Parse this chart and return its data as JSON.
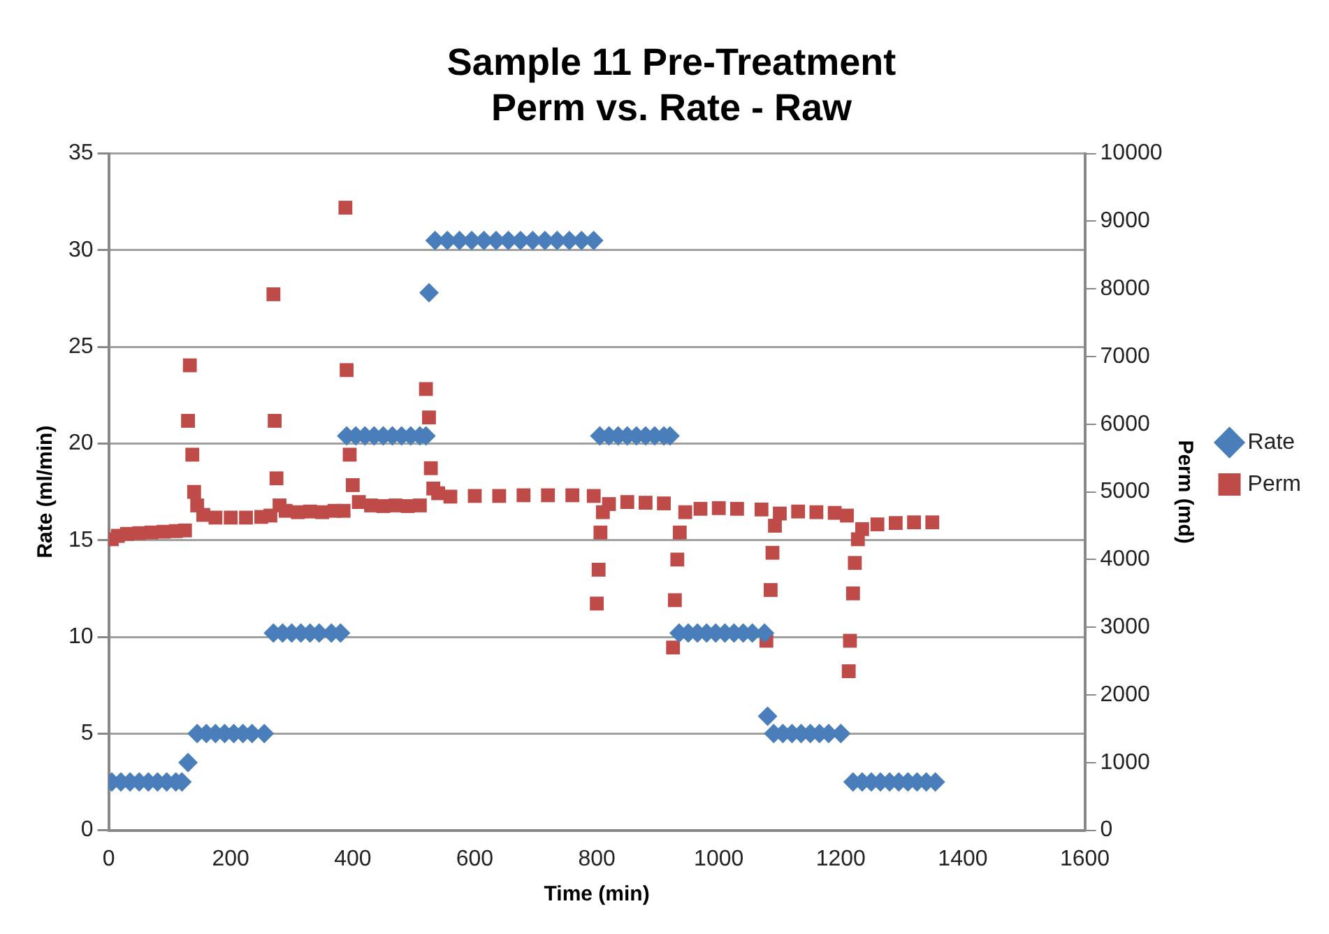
{
  "chart_data": {
    "type": "scatter",
    "title": "Sample 11 Pre-Treatment\nPerm vs. Rate - Raw",
    "xlabel": "Time (min)",
    "ylabel": "Rate (ml/min)",
    "y2label": "Perm (md)",
    "xlim": [
      0,
      1600
    ],
    "xticks": [
      0,
      200,
      400,
      600,
      800,
      1000,
      1200,
      1400,
      1600
    ],
    "ylim": [
      0,
      35
    ],
    "yticks": [
      0,
      5,
      10,
      15,
      20,
      25,
      30,
      35
    ],
    "y2lim": [
      0,
      10000
    ],
    "y2ticks": [
      0,
      1000,
      2000,
      3000,
      4000,
      5000,
      6000,
      7000,
      8000,
      9000,
      10000
    ],
    "grid": "y",
    "legend": "right",
    "series": [
      {
        "name": "Rate",
        "color": "#4a7ebb",
        "marker": "diamond",
        "x": [
          5,
          20,
          35,
          50,
          65,
          80,
          95,
          110,
          120,
          130,
          145,
          160,
          175,
          190,
          205,
          220,
          235,
          255,
          270,
          285,
          300,
          315,
          330,
          345,
          365,
          380,
          390,
          405,
          420,
          435,
          450,
          465,
          480,
          495,
          510,
          520,
          525,
          535,
          555,
          575,
          595,
          615,
          635,
          655,
          675,
          695,
          715,
          735,
          755,
          775,
          795,
          805,
          820,
          835,
          850,
          865,
          880,
          895,
          910,
          920,
          935,
          950,
          965,
          980,
          995,
          1010,
          1025,
          1040,
          1055,
          1075,
          1080,
          1090,
          1105,
          1120,
          1135,
          1150,
          1165,
          1180,
          1200,
          1220,
          1235,
          1250,
          1265,
          1280,
          1295,
          1310,
          1325,
          1340,
          1355
        ],
        "values": [
          2.5,
          2.5,
          2.5,
          2.5,
          2.5,
          2.5,
          2.5,
          2.5,
          2.5,
          3.5,
          5,
          5,
          5,
          5,
          5,
          5,
          5,
          5,
          10.2,
          10.2,
          10.2,
          10.2,
          10.2,
          10.2,
          10.2,
          10.2,
          20.4,
          20.4,
          20.4,
          20.4,
          20.4,
          20.4,
          20.4,
          20.4,
          20.4,
          20.4,
          27.8,
          30.5,
          30.5,
          30.5,
          30.5,
          30.5,
          30.5,
          30.5,
          30.5,
          30.5,
          30.5,
          30.5,
          30.5,
          30.5,
          30.5,
          20.4,
          20.4,
          20.4,
          20.4,
          20.4,
          20.4,
          20.4,
          20.4,
          20.4,
          10.2,
          10.2,
          10.2,
          10.2,
          10.2,
          10.2,
          10.2,
          10.2,
          10.2,
          10.2,
          5.9,
          5,
          5,
          5,
          5,
          5,
          5,
          5,
          5,
          2.5,
          2.5,
          2.5,
          2.5,
          2.5,
          2.5,
          2.5,
          2.5,
          2.5,
          2.5
        ]
      },
      {
        "name": "Perm",
        "color": "#be4b48",
        "marker": "square",
        "axis": "y2",
        "x": [
          5,
          15,
          30,
          50,
          70,
          90,
          110,
          125,
          130,
          133,
          137,
          140,
          145,
          155,
          175,
          200,
          225,
          250,
          265,
          270,
          272,
          275,
          280,
          290,
          310,
          330,
          350,
          370,
          385,
          388,
          390,
          395,
          400,
          410,
          430,
          450,
          470,
          490,
          510,
          520,
          525,
          528,
          532,
          540,
          560,
          600,
          640,
          680,
          720,
          760,
          795,
          800,
          803,
          806,
          810,
          820,
          850,
          880,
          910,
          925,
          928,
          932,
          936,
          945,
          970,
          1000,
          1030,
          1070,
          1078,
          1085,
          1088,
          1092,
          1100,
          1130,
          1160,
          1190,
          1210,
          1213,
          1215,
          1220,
          1223,
          1228,
          1235,
          1260,
          1290,
          1320,
          1350
        ],
        "values": [
          4300,
          4350,
          4380,
          4390,
          4400,
          4410,
          4420,
          4430,
          6050,
          6870,
          5550,
          5000,
          4800,
          4660,
          4620,
          4620,
          4620,
          4630,
          4650,
          7920,
          6050,
          5200,
          4800,
          4720,
          4700,
          4710,
          4700,
          4720,
          4720,
          9200,
          6800,
          5550,
          5100,
          4850,
          4800,
          4790,
          4800,
          4790,
          4800,
          6520,
          6100,
          5350,
          5050,
          4980,
          4930,
          4940,
          4940,
          4950,
          4950,
          4950,
          4940,
          3350,
          3850,
          4400,
          4700,
          4820,
          4850,
          4840,
          4830,
          2700,
          3400,
          4000,
          4400,
          4700,
          4750,
          4760,
          4750,
          4740,
          2800,
          3550,
          4100,
          4500,
          4680,
          4710,
          4700,
          4690,
          4650,
          2350,
          2800,
          3500,
          3950,
          4300,
          4450,
          4520,
          4540,
          4550,
          4550
        ]
      }
    ]
  }
}
